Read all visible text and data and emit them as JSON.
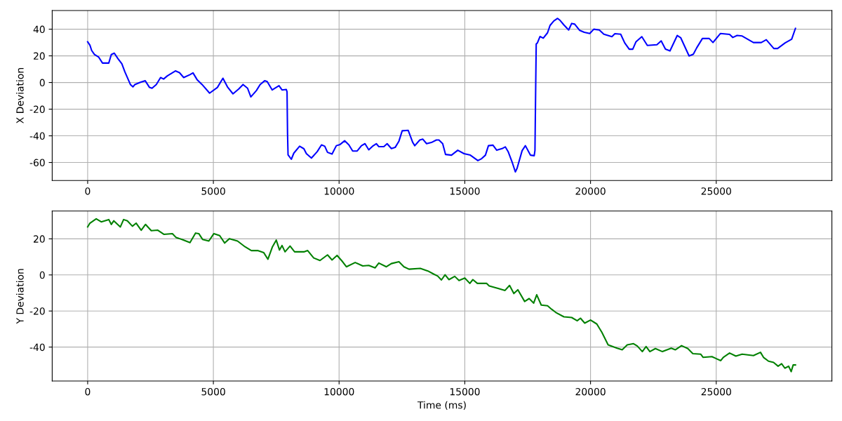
{
  "chart_data": [
    {
      "type": "line",
      "ylabel": "X Deviation",
      "xlim": [
        -1410,
        29600
      ],
      "xticks": [
        0,
        5000,
        10000,
        15000,
        20000,
        25000
      ],
      "ylim": [
        -73.5,
        54
      ],
      "yticks": [
        -60,
        -40,
        -20,
        0,
        20,
        40
      ],
      "grid": true,
      "line_style": "solid",
      "series": [
        {
          "color": "#0000ff",
          "x": [
            0,
            90,
            160,
            270,
            440,
            590,
            840,
            940,
            1060,
            1200,
            1360,
            1480,
            1700,
            1800,
            1880,
            2080,
            2290,
            2460,
            2560,
            2730,
            2900,
            3020,
            3170,
            3490,
            3650,
            3820,
            4070,
            4190,
            4350,
            4550,
            4850,
            5160,
            5380,
            5560,
            5780,
            6010,
            6180,
            6360,
            6490,
            6710,
            6860,
            7040,
            7140,
            7340,
            7610,
            7730,
            7900,
            7930,
            7950,
            7970,
            8100,
            8200,
            8430,
            8600,
            8700,
            8900,
            9130,
            9300,
            9430,
            9540,
            9720,
            9890,
            10040,
            10220,
            10390,
            10540,
            10720,
            10890,
            11030,
            11180,
            11330,
            11480,
            11580,
            11780,
            11910,
            12080,
            12230,
            12380,
            12510,
            12750,
            12930,
            13010,
            13210,
            13330,
            13480,
            13670,
            13870,
            13970,
            14120,
            14235,
            14470,
            14720,
            14970,
            15220,
            15520,
            15670,
            15820,
            15940,
            16120,
            16270,
            16480,
            16610,
            16730,
            16880,
            17010,
            17080,
            17280,
            17410,
            17610,
            17760,
            17790,
            17820,
            17840,
            17890,
            17990,
            18120,
            18290,
            18390,
            18540,
            18690,
            18790,
            18940,
            19130,
            19250,
            19370,
            19570,
            19750,
            19970,
            20130,
            20350,
            20530,
            20850,
            20970,
            21200,
            21360,
            21540,
            21680,
            21810,
            22040,
            22260,
            22640,
            22810,
            22980,
            23160,
            23450,
            23590,
            23920,
            24090,
            24220,
            24450,
            24720,
            24870,
            25170,
            25530,
            25660,
            25830,
            26030,
            26480,
            26790,
            26990,
            27290,
            27440,
            27740,
            28000,
            28150
          ],
          "values": [
            30.5,
            28,
            24,
            21,
            19,
            14.6,
            14.6,
            21,
            22,
            18,
            14,
            8,
            -1.5,
            -3.3,
            -1.5,
            0,
            1.3,
            -3.7,
            -4.3,
            -1.5,
            3.7,
            2.6,
            5,
            8.7,
            7.4,
            3.7,
            5.9,
            7.2,
            2.2,
            -1.5,
            -8,
            -3.7,
            3.2,
            -3.3,
            -8.5,
            -4.8,
            -1.5,
            -4.3,
            -10.8,
            -6.1,
            -1.5,
            1.3,
            0.7,
            -5.6,
            -2.4,
            -5.6,
            -5.2,
            -7,
            -38.5,
            -54.3,
            -57.6,
            -53,
            -47.8,
            -49.7,
            -53.4,
            -56.7,
            -51.9,
            -46.8,
            -47.8,
            -52.4,
            -53.7,
            -47.4,
            -46.5,
            -43.7,
            -46.8,
            -51.4,
            -51.4,
            -47.4,
            -45.9,
            -50.5,
            -47.8,
            -45.9,
            -48.1,
            -48.1,
            -45.9,
            -49.6,
            -48.7,
            -44,
            -36.2,
            -35.9,
            -45,
            -47.4,
            -43.1,
            -42.5,
            -45.9,
            -45,
            -43.1,
            -43.1,
            -45.9,
            -54,
            -54.5,
            -50.8,
            -53.4,
            -54.5,
            -58.6,
            -57.1,
            -54.5,
            -47.4,
            -47,
            -50.8,
            -49.6,
            -48.3,
            -52.1,
            -59.6,
            -67.1,
            -64.3,
            -51.1,
            -47.4,
            -54.5,
            -54.9,
            -51,
            -2.1,
            28.9,
            29.8,
            34.5,
            33.3,
            37.3,
            42.8,
            46.2,
            48.1,
            46.6,
            43.2,
            39.4,
            44.3,
            43.8,
            39.1,
            37.7,
            36.8,
            40,
            39.4,
            36.2,
            34.4,
            36.6,
            36.2,
            29.7,
            25,
            25,
            30.6,
            34.4,
            27.8,
            28.3,
            31.2,
            25,
            23.7,
            35.3,
            33.5,
            19.9,
            21.2,
            25.9,
            33,
            33,
            30,
            36.8,
            36.1,
            33.8,
            35.3,
            34.9,
            30,
            30,
            32.1,
            25.5,
            25.5,
            29.7,
            32.5,
            40.6
          ]
        }
      ]
    },
    {
      "type": "line",
      "xlabel": "Time (ms)",
      "ylabel": "Y Deviation",
      "xlim": [
        -1410,
        29600
      ],
      "xticks": [
        0,
        5000,
        10000,
        15000,
        20000,
        25000
      ],
      "ylim": [
        -58.8,
        35.4
      ],
      "yticks": [
        -40,
        -20,
        0,
        20
      ],
      "grid": true,
      "line_style": "solid",
      "series": [
        {
          "color": "#008000",
          "x": [
            0,
            90,
            340,
            540,
            840,
            940,
            1040,
            1300,
            1430,
            1580,
            1780,
            1930,
            2130,
            2300,
            2530,
            2790,
            3030,
            3370,
            3520,
            3750,
            4070,
            4290,
            4420,
            4570,
            4820,
            5020,
            5250,
            5450,
            5640,
            5960,
            6260,
            6510,
            6760,
            7000,
            7170,
            7350,
            7500,
            7630,
            7730,
            7850,
            8050,
            8230,
            8600,
            8750,
            8990,
            9240,
            9540,
            9720,
            9920,
            10140,
            10290,
            10640,
            10940,
            11180,
            11430,
            11580,
            11880,
            12080,
            12380,
            12580,
            12780,
            13230,
            13530,
            13770,
            13920,
            14070,
            14215,
            14370,
            14600,
            14770,
            15000,
            15200,
            15320,
            15500,
            15870,
            15970,
            16320,
            16600,
            16780,
            16950,
            17110,
            17380,
            17560,
            17740,
            17860,
            18040,
            18290,
            18460,
            18620,
            18940,
            19250,
            19470,
            19600,
            19770,
            20000,
            20250,
            20450,
            20700,
            21060,
            21260,
            21460,
            21710,
            21860,
            22060,
            22210,
            22360,
            22580,
            22860,
            23210,
            23370,
            23620,
            23870,
            24070,
            24380,
            24480,
            24830,
            25000,
            25180,
            25280,
            25530,
            25780,
            26030,
            26480,
            26760,
            26880,
            27080,
            27280,
            27460,
            27600,
            27730,
            27880,
            27980,
            28060,
            28150
          ],
          "values": [
            26.6,
            28.7,
            31.1,
            29.4,
            30.7,
            28,
            30,
            26.6,
            30.7,
            30,
            27,
            28.7,
            24.8,
            28,
            24.5,
            24.8,
            22.5,
            22.9,
            20.7,
            19.7,
            17.9,
            23.2,
            22.9,
            19.7,
            18.8,
            22.9,
            21.8,
            17.7,
            20.1,
            18.8,
            15.6,
            13.5,
            13.5,
            12.4,
            8.7,
            15.6,
            19.3,
            13.8,
            16.3,
            12.8,
            16,
            12.8,
            12.8,
            13.5,
            9.4,
            8,
            11.1,
            8.3,
            10.8,
            7.3,
            4.5,
            6.9,
            5,
            5.3,
            3.9,
            6.6,
            4.5,
            6.3,
            7.3,
            4.5,
            3.2,
            3.6,
            2.2,
            0.4,
            -0.6,
            -2.8,
            0.1,
            -2.6,
            -0.8,
            -3.1,
            -1.7,
            -4.7,
            -2.6,
            -4.7,
            -4.7,
            -6.1,
            -7.5,
            -8.6,
            -5.8,
            -10.3,
            -8.2,
            -14.7,
            -13.1,
            -15.6,
            -11,
            -16.7,
            -17.1,
            -19.1,
            -20.8,
            -23.2,
            -23.6,
            -25.4,
            -24,
            -26.7,
            -25,
            -27.2,
            -31.8,
            -38.8,
            -40.6,
            -41.5,
            -38.8,
            -38.1,
            -39.4,
            -42.5,
            -39.7,
            -42.5,
            -40.8,
            -42.5,
            -40.6,
            -41.5,
            -39.2,
            -40.8,
            -43.6,
            -43.9,
            -45.7,
            -45.3,
            -46.4,
            -47.5,
            -45.7,
            -43.3,
            -45,
            -43.9,
            -44.7,
            -42.9,
            -45.7,
            -47.8,
            -48.5,
            -50.6,
            -49.2,
            -51.7,
            -50.6,
            -53.6,
            -49.9,
            -49.9
          ]
        }
      ]
    }
  ]
}
